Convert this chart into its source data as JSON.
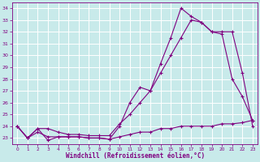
{
  "xlabel": "Windchill (Refroidissement éolien,°C)",
  "bg_color": "#c8eaea",
  "grid_color": "#b0d0d0",
  "line_color": "#800080",
  "xlim": [
    -0.5,
    23.5
  ],
  "ylim": [
    22.5,
    34.5
  ],
  "yticks": [
    23,
    24,
    25,
    26,
    27,
    28,
    29,
    30,
    31,
    32,
    33,
    34
  ],
  "xticks": [
    0,
    1,
    2,
    3,
    4,
    5,
    6,
    7,
    8,
    9,
    10,
    11,
    12,
    13,
    14,
    15,
    16,
    17,
    18,
    19,
    20,
    21,
    22,
    23
  ],
  "series": [
    {
      "x": [
        0,
        1,
        2,
        3,
        4,
        5,
        6,
        7,
        8,
        9,
        10,
        11,
        12,
        13,
        14,
        15,
        16,
        17,
        18,
        19,
        20,
        21,
        22,
        23
      ],
      "y": [
        24.0,
        23.0,
        23.8,
        22.8,
        23.1,
        23.1,
        23.1,
        23.0,
        23.0,
        22.9,
        24.0,
        26.0,
        27.3,
        27.0,
        29.3,
        31.5,
        34.0,
        33.3,
        32.8,
        32.0,
        31.8,
        28.0,
        26.5,
        24.5
      ]
    },
    {
      "x": [
        0,
        1,
        2,
        3,
        4,
        5,
        6,
        7,
        8,
        9,
        10,
        11,
        12,
        13,
        14,
        15,
        16,
        17,
        18,
        19,
        20,
        21,
        22,
        23
      ],
      "y": [
        24.0,
        23.0,
        23.8,
        23.8,
        23.5,
        23.3,
        23.3,
        23.2,
        23.2,
        23.2,
        24.2,
        25.0,
        26.0,
        27.0,
        28.5,
        30.0,
        31.5,
        33.0,
        32.8,
        32.0,
        32.0,
        32.0,
        28.5,
        24.0
      ]
    },
    {
      "x": [
        0,
        1,
        2,
        3,
        4,
        5,
        6,
        7,
        8,
        9,
        10,
        11,
        12,
        13,
        14,
        15,
        16,
        17,
        18,
        19,
        20,
        21,
        22,
        23
      ],
      "y": [
        24.0,
        23.0,
        23.5,
        23.1,
        23.1,
        23.1,
        23.1,
        23.0,
        23.0,
        22.9,
        23.1,
        23.3,
        23.5,
        23.5,
        23.8,
        23.8,
        24.0,
        24.0,
        24.0,
        24.0,
        24.2,
        24.2,
        24.3,
        24.5
      ]
    }
  ]
}
